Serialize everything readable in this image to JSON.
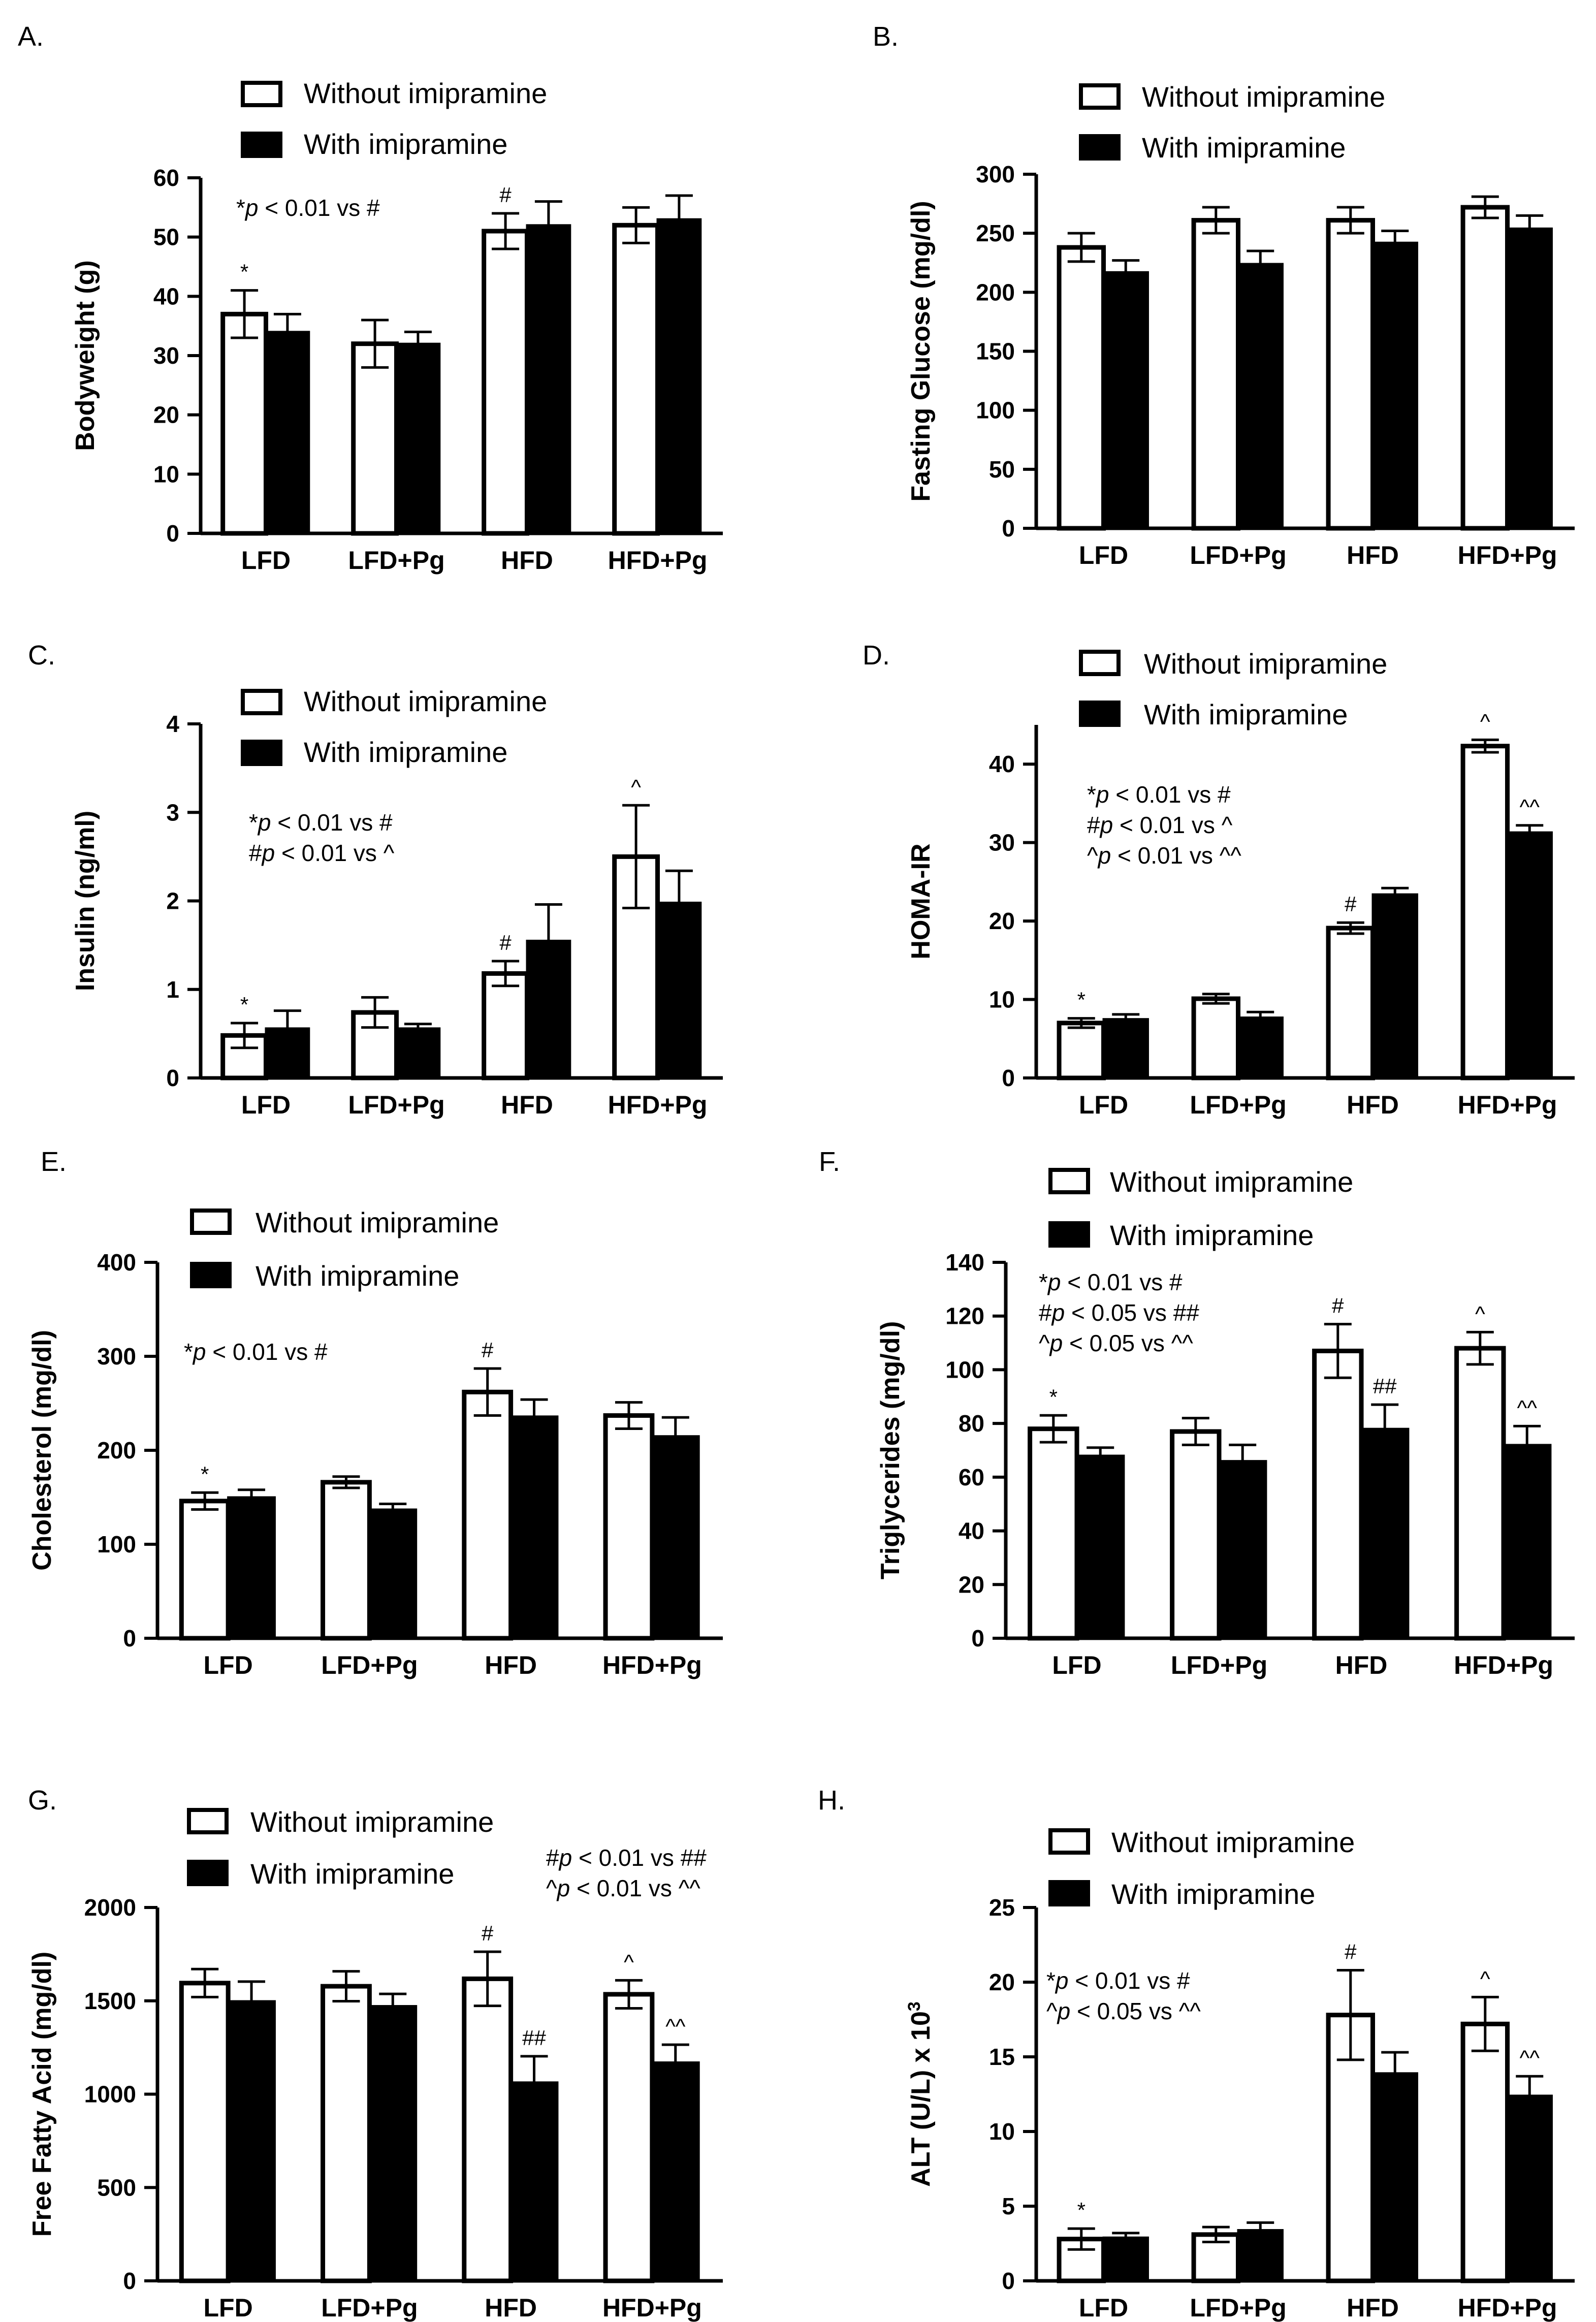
{
  "colors": {
    "without": "#ffffff",
    "with": "#000000",
    "stroke": "#000000"
  },
  "chart_data": [
    {
      "panel": "A.",
      "type": "bar",
      "categories": [
        "LFD",
        "LFD+Pg",
        "HFD",
        "HFD+Pg"
      ],
      "ylabel": "Bodyweight (g)",
      "ylim": [
        0,
        60
      ],
      "yticks": [
        0,
        10,
        20,
        30,
        40,
        50,
        60
      ],
      "series": [
        {
          "name": "Without imipramine",
          "values": [
            37,
            32,
            51,
            52
          ],
          "errors": [
            4,
            4,
            3,
            3
          ],
          "markers": [
            "*",
            "",
            "#",
            ""
          ]
        },
        {
          "name": "With imipramine",
          "values": [
            34,
            32,
            52,
            53
          ],
          "errors": [
            3,
            2,
            4,
            4
          ],
          "markers": [
            "",
            "",
            "",
            ""
          ]
        }
      ],
      "notes": [
        "*p < 0.01 vs #"
      ]
    },
    {
      "panel": "B.",
      "type": "bar",
      "categories": [
        "LFD",
        "LFD+Pg",
        "HFD",
        "HFD+Pg"
      ],
      "ylabel": "Fasting Glucose (mg/dl)",
      "ylim": [
        0,
        300
      ],
      "yticks": [
        0,
        50,
        100,
        150,
        200,
        250,
        300
      ],
      "series": [
        {
          "name": "Without imipramine",
          "values": [
            238,
            261,
            261,
            272
          ],
          "errors": [
            12,
            11,
            11,
            9
          ],
          "markers": [
            "",
            "",
            "",
            ""
          ]
        },
        {
          "name": "With imipramine",
          "values": [
            217,
            224,
            242,
            254
          ],
          "errors": [
            10,
            11,
            10,
            11
          ],
          "markers": [
            "",
            "",
            "",
            ""
          ]
        }
      ],
      "notes": []
    },
    {
      "panel": "C.",
      "type": "bar",
      "categories": [
        "LFD",
        "LFD+Pg",
        "HFD",
        "HFD+Pg"
      ],
      "ylabel": "Insulin (ng/ml)",
      "ylim": [
        0,
        4
      ],
      "yticks": [
        0,
        1,
        2,
        3,
        4
      ],
      "series": [
        {
          "name": "Without imipramine",
          "values": [
            0.48,
            0.74,
            1.18,
            2.5
          ],
          "errors": [
            0.14,
            0.17,
            0.14,
            0.58
          ],
          "markers": [
            "*",
            "",
            "#",
            "^"
          ]
        },
        {
          "name": "With imipramine",
          "values": [
            0.56,
            0.56,
            1.55,
            1.98
          ],
          "errors": [
            0.2,
            0.05,
            0.41,
            0.36
          ],
          "markers": [
            "",
            "",
            "",
            ""
          ]
        }
      ],
      "notes": [
        "*p < 0.01 vs #",
        "#p < 0.01 vs ^"
      ]
    },
    {
      "panel": "D.",
      "type": "bar",
      "categories": [
        "LFD",
        "LFD+Pg",
        "HFD",
        "HFD+Pg"
      ],
      "ylabel": "HOMA-IR",
      "ylim": [
        0,
        45
      ],
      "yticks": [
        0,
        10,
        20,
        30,
        40
      ],
      "series": [
        {
          "name": "Without imipramine",
          "values": [
            7.0,
            10.1,
            19.1,
            42.3
          ],
          "errors": [
            0.6,
            0.6,
            0.7,
            0.8
          ],
          "markers": [
            "*",
            "",
            "#",
            "^"
          ]
        },
        {
          "name": "With imipramine",
          "values": [
            7.5,
            7.7,
            23.4,
            31.3
          ],
          "errors": [
            0.6,
            0.7,
            0.8,
            0.9
          ],
          "markers": [
            "",
            "",
            "",
            "^^"
          ]
        }
      ],
      "notes": [
        "*p < 0.01 vs #",
        "#p < 0.01 vs ^",
        "^p < 0.01 vs ^^"
      ]
    },
    {
      "panel": "E.",
      "type": "bar",
      "categories": [
        "LFD",
        "LFD+Pg",
        "HFD",
        "HFD+Pg"
      ],
      "ylabel": "Cholesterol (mg/dl)",
      "ylim": [
        0,
        400
      ],
      "yticks": [
        0,
        100,
        200,
        300,
        400
      ],
      "series": [
        {
          "name": "Without imipramine",
          "values": [
            146,
            166,
            262,
            237
          ],
          "errors": [
            9,
            6,
            25,
            14
          ],
          "markers": [
            "*",
            "",
            "#",
            ""
          ]
        },
        {
          "name": "With imipramine",
          "values": [
            150,
            137,
            236,
            215
          ],
          "errors": [
            8,
            6,
            18,
            20
          ],
          "markers": [
            "",
            "",
            "",
            ""
          ]
        }
      ],
      "notes": [
        "*p < 0.01 vs #"
      ]
    },
    {
      "panel": "F.",
      "type": "bar",
      "categories": [
        "LFD",
        "LFD+Pg",
        "HFD",
        "HFD+Pg"
      ],
      "ylabel": "Triglycerides (mg/dl)",
      "ylim": [
        0,
        140
      ],
      "yticks": [
        0,
        20,
        40,
        60,
        80,
        100,
        120,
        140
      ],
      "series": [
        {
          "name": "Without imipramine",
          "values": [
            78,
            77,
            107,
            108
          ],
          "errors": [
            5,
            5,
            10,
            6
          ],
          "markers": [
            "*",
            "",
            "#",
            "^"
          ]
        },
        {
          "name": "With imipramine",
          "values": [
            68,
            66,
            78,
            72
          ],
          "errors": [
            3,
            6,
            9,
            7
          ],
          "markers": [
            "",
            "",
            "##",
            "^^"
          ]
        }
      ],
      "notes": [
        "*p < 0.01 vs #",
        "#p < 0.05 vs ##",
        "^p < 0.05 vs ^^"
      ]
    },
    {
      "panel": "G.",
      "type": "bar",
      "categories": [
        "LFD",
        "LFD+Pg",
        "HFD",
        "HFD+Pg"
      ],
      "ylabel": "Free Fatty Acid (mg/dl)",
      "ylim": [
        0,
        2000
      ],
      "yticks": [
        0,
        500,
        1000,
        1500,
        2000
      ],
      "series": [
        {
          "name": "Without imipramine",
          "values": [
            1595,
            1578,
            1618,
            1535
          ],
          "errors": [
            75,
            80,
            145,
            75
          ],
          "markers": [
            "",
            "",
            "#",
            "^"
          ]
        },
        {
          "name": "With imipramine",
          "values": [
            1498,
            1472,
            1063,
            1170
          ],
          "errors": [
            105,
            65,
            140,
            95
          ],
          "markers": [
            "",
            "",
            "##",
            "^^"
          ]
        }
      ],
      "notes": [
        "#p < 0.01 vs ##",
        "^p < 0.01 vs ^^"
      ]
    },
    {
      "panel": "H.",
      "type": "bar",
      "categories": [
        "LFD",
        "LFD+Pg",
        "HFD",
        "HFD+Pg"
      ],
      "ylabel": "ALT (U/L) x 10",
      "ylabel_superscript": "3",
      "ylim": [
        0,
        25
      ],
      "yticks": [
        0,
        5,
        10,
        15,
        20,
        25
      ],
      "series": [
        {
          "name": "Without imipramine",
          "values": [
            2.8,
            3.1,
            17.8,
            17.2
          ],
          "errors": [
            0.7,
            0.5,
            3.0,
            1.8
          ],
          "markers": [
            "*",
            "",
            "#",
            "^"
          ]
        },
        {
          "name": "With imipramine",
          "values": [
            2.9,
            3.4,
            13.9,
            12.4
          ],
          "errors": [
            0.3,
            0.5,
            1.4,
            1.3
          ],
          "markers": [
            "",
            "",
            "",
            "^^"
          ]
        }
      ],
      "notes": [
        "*p < 0.01 vs #",
        "^p < 0.05 vs ^^"
      ]
    }
  ]
}
